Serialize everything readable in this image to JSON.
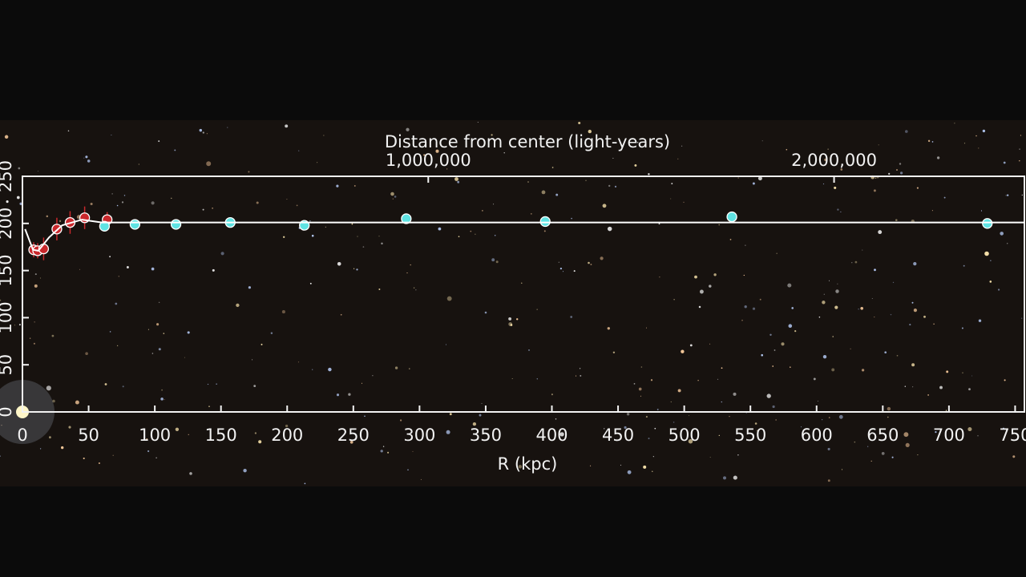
{
  "chart_data": {
    "type": "scatter",
    "title": "Distance from center (light-years)",
    "xlabel": "R (kpc)",
    "xlim": [
      0,
      757
    ],
    "xticks": [
      0,
      50,
      100,
      150,
      200,
      250,
      300,
      350,
      400,
      450,
      500,
      550,
      600,
      650,
      700,
      750
    ],
    "ylim": [
      0,
      250
    ],
    "yticks": [
      0,
      50,
      100,
      150,
      200,
      250
    ],
    "x2lim": [
      0,
      2469000
    ],
    "x2ticks": [
      {
        "value": 1000000,
        "label": "1,000,000"
      },
      {
        "value": 2000000,
        "label": "2,000,000"
      }
    ],
    "grid": false,
    "series": [
      {
        "color": "#c9282c",
        "x": [
          8.5,
          11.5,
          16,
          26,
          36,
          47,
          64
        ],
        "values": [
          172,
          171,
          173,
          194,
          201,
          206,
          204
        ],
        "errors": [
          8,
          8,
          12,
          12,
          12,
          12,
          8
        ]
      },
      {
        "color": "#5fe3e3",
        "x": [
          62,
          85,
          116,
          157,
          213,
          290,
          395,
          536,
          729
        ],
        "values": [
          197,
          199,
          199,
          201,
          198,
          205,
          202,
          207,
          200
        ],
        "errors": [
          5,
          5,
          5,
          5,
          5,
          5,
          5,
          5,
          5
        ]
      },
      {
        "style": "line",
        "color": "#ffffff",
        "x": [
          2,
          8,
          12,
          20,
          30,
          45,
          60,
          100,
          757
        ],
        "values": [
          194,
          172,
          171,
          185,
          198,
          204,
          201,
          201,
          201
        ]
      }
    ]
  }
}
